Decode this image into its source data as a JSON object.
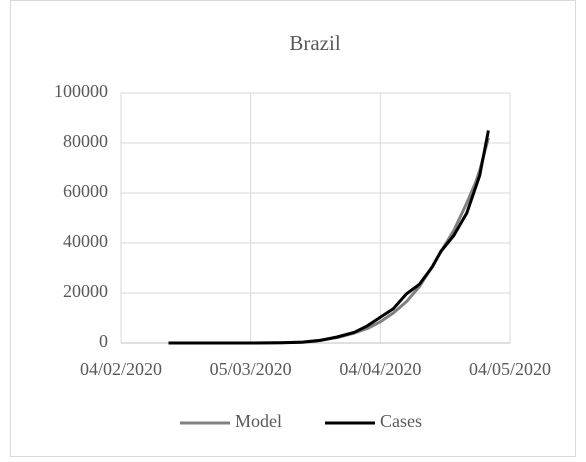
{
  "chart_data": {
    "type": "line",
    "title": "Brazil",
    "x": [
      "2020-02-15",
      "2020-02-26",
      "2020-03-05",
      "2020-03-12",
      "2020-03-17",
      "2020-03-21",
      "2020-03-25",
      "2020-03-29",
      "2020-04-01",
      "2020-04-04",
      "2020-04-07",
      "2020-04-10",
      "2020-04-13",
      "2020-04-16",
      "2020-04-18",
      "2020-04-21",
      "2020-04-24",
      "2020-04-26",
      "2020-04-27",
      "2020-04-29"
    ],
    "series": [
      {
        "name": "Model",
        "color": "#808080",
        "values": [
          0,
          1,
          10,
          120,
          400,
          1100,
          2200,
          4000,
          5800,
          8500,
          12000,
          16500,
          22500,
          30500,
          36500,
          45000,
          56000,
          64000,
          69000,
          82000
        ]
      },
      {
        "name": "Cases",
        "color": "#000000",
        "values": [
          0,
          1,
          8,
          80,
          300,
          1000,
          2400,
          4300,
          6900,
          10300,
          13700,
          19600,
          23400,
          30400,
          36600,
          43000,
          52000,
          62000,
          67000,
          85000
        ]
      }
    ],
    "xlim": [
      "2020-02-04",
      "2020-05-04"
    ],
    "xticks": [
      {
        "value": "2020-02-04",
        "label": "04/02/2020"
      },
      {
        "value": "2020-03-05",
        "label": "05/03/2020"
      },
      {
        "value": "2020-04-04",
        "label": "04/04/2020"
      },
      {
        "value": "2020-05-04",
        "label": "04/05/2020"
      }
    ],
    "ylim": [
      0,
      100000
    ],
    "yticks": [
      0,
      20000,
      40000,
      60000,
      80000,
      100000
    ],
    "grid": true,
    "legend": "bottom"
  }
}
